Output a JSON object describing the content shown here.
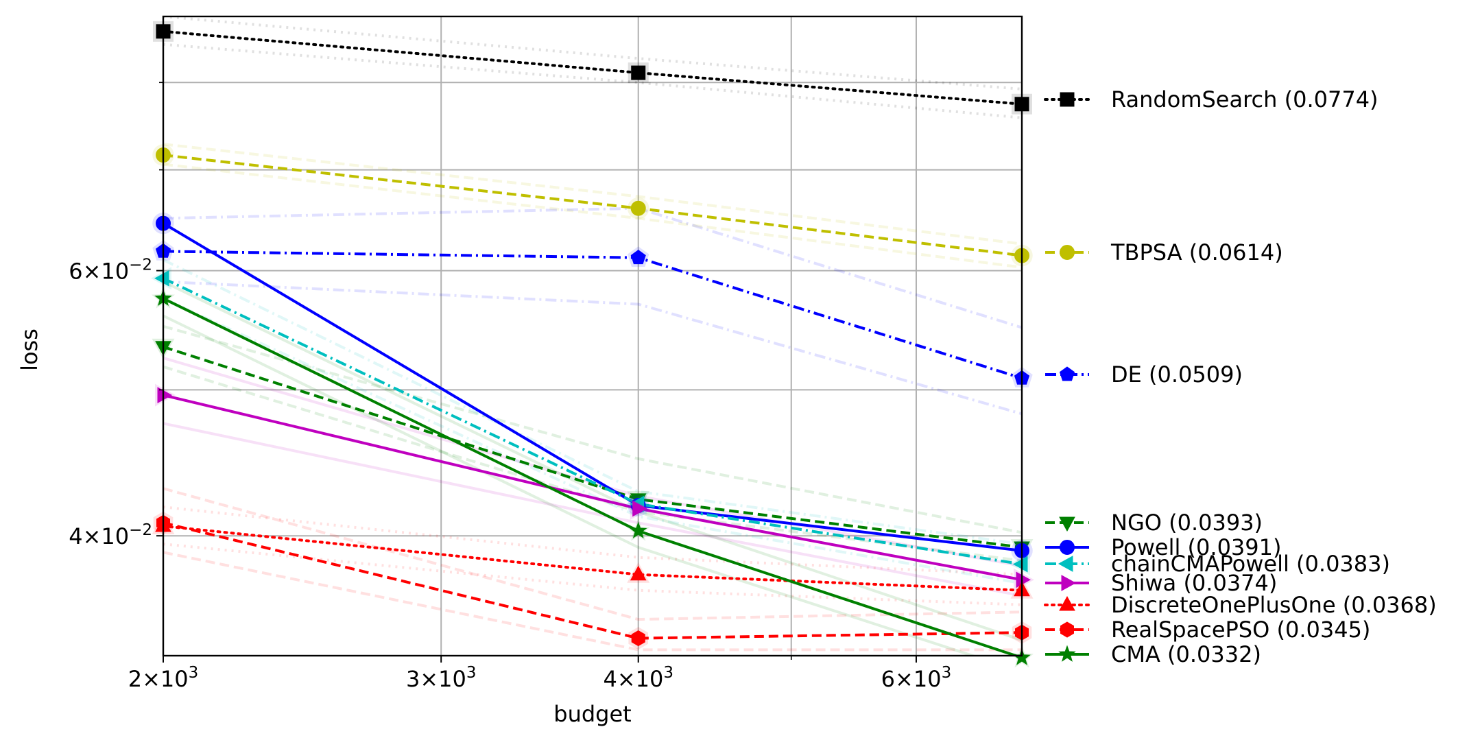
{
  "chart_data": {
    "type": "line",
    "title": "",
    "xlabel": "budget",
    "ylabel": "loss",
    "xscale": "log",
    "yscale": "log",
    "xlim": [
      2000,
      7000
    ],
    "ylim": [
      0.0333,
      0.0885
    ],
    "grid": true,
    "legend_position": "right",
    "x_ticks_major": [
      {
        "value": 2000,
        "mant": "2",
        "exp": "3"
      },
      {
        "value": 3000,
        "mant": "3",
        "exp": "3"
      },
      {
        "value": 4000,
        "mant": "4",
        "exp": "3"
      },
      {
        "value": 6000,
        "mant": "6",
        "exp": "3"
      }
    ],
    "x_ticks_minor": [
      5000
    ],
    "y_ticks_major": [
      {
        "value": 0.04,
        "mant": "4",
        "exp": "−2"
      },
      {
        "value": 0.06,
        "mant": "6",
        "exp": "−2"
      }
    ],
    "y_ticks_minor": [
      0.05,
      0.07,
      0.08
    ],
    "x": [
      2000,
      4000,
      7000
    ],
    "series": [
      {
        "name": "RandomSearch (0.0774)",
        "values": [
          0.0865,
          0.0812,
          0.0774
        ],
        "color": "#000000",
        "dash": "dotted",
        "marker": "square"
      },
      {
        "name": "TBPSA (0.0614)",
        "values": [
          0.0716,
          0.066,
          0.0614
        ],
        "color": "#bfbf00",
        "dash": "dashed",
        "marker": "circle"
      },
      {
        "name": "DE (0.0509)",
        "values": [
          0.0618,
          0.0612,
          0.0509
        ],
        "color": "#0000ff",
        "dash": "dashdot",
        "marker": "pentagon"
      },
      {
        "name": "NGO (0.0393)",
        "values": [
          0.0534,
          0.0423,
          0.0393
        ],
        "color": "#008000",
        "dash": "dashed",
        "marker": "triangle-down"
      },
      {
        "name": "Powell (0.0391)",
        "values": [
          0.0645,
          0.0419,
          0.0391
        ],
        "color": "#0000ff",
        "dash": "solid",
        "marker": "circle"
      },
      {
        "name": "chainCMAPowell (0.0383)",
        "values": [
          0.0593,
          0.042,
          0.0383
        ],
        "color": "#00bfbf",
        "dash": "dashdot",
        "marker": "triangle-left"
      },
      {
        "name": "Shiwa (0.0374)",
        "values": [
          0.0496,
          0.0417,
          0.0374
        ],
        "color": "#bf00bf",
        "dash": "solid",
        "marker": "triangle-right"
      },
      {
        "name": "DiscreteOnePlusOne (0.0368)",
        "values": [
          0.0406,
          0.0377,
          0.0368
        ],
        "color": "#ff0000",
        "dash": "dotted",
        "marker": "triangle-up"
      },
      {
        "name": "RealSpacePSO (0.0345)",
        "values": [
          0.0408,
          0.0342,
          0.0345
        ],
        "color": "#ff0000",
        "dash": "dashed",
        "marker": "hexagon"
      },
      {
        "name": "CMA (0.0332)",
        "values": [
          0.0575,
          0.0403,
          0.0332
        ],
        "color": "#008000",
        "dash": "solid",
        "marker": "star"
      }
    ],
    "faint_series": [
      {
        "values": [
          0.0885,
          0.083,
          0.0792
        ],
        "color": "#000000",
        "dash": "dotted"
      },
      {
        "values": [
          0.0848,
          0.08,
          0.0758
        ],
        "color": "#000000",
        "dash": "dotted"
      },
      {
        "values": [
          0.0728,
          0.0672,
          0.0625
        ],
        "color": "#bfbf00",
        "dash": "dashed"
      },
      {
        "values": [
          0.0706,
          0.065,
          0.0603
        ],
        "color": "#bfbf00",
        "dash": "dashed"
      },
      {
        "values": [
          0.065,
          0.066,
          0.055
        ],
        "color": "#0000ff",
        "dash": "dashdot"
      },
      {
        "values": [
          0.059,
          0.057,
          0.0482
        ],
        "color": "#0000ff",
        "dash": "dashdot"
      },
      {
        "values": [
          0.0551,
          0.045,
          0.0402
        ],
        "color": "#008000",
        "dash": "dashed"
      },
      {
        "values": [
          0.0518,
          0.0415,
          0.0385
        ],
        "color": "#008000",
        "dash": "dashed"
      },
      {
        "values": [
          0.061,
          0.0428,
          0.0395
        ],
        "color": "#00bfbf",
        "dash": "dashdot"
      },
      {
        "values": [
          0.0575,
          0.0412,
          0.0372
        ],
        "color": "#00bfbf",
        "dash": "dashdot"
      },
      {
        "values": [
          0.0525,
          0.0425,
          0.0382
        ],
        "color": "#bf00bf",
        "dash": "solid"
      },
      {
        "values": [
          0.0475,
          0.0408,
          0.0365
        ],
        "color": "#bf00bf",
        "dash": "solid"
      },
      {
        "values": [
          0.0418,
          0.0387,
          0.0377
        ],
        "color": "#ff0000",
        "dash": "dotted"
      },
      {
        "values": [
          0.0395,
          0.0368,
          0.036
        ],
        "color": "#ff0000",
        "dash": "dotted"
      },
      {
        "values": [
          0.043,
          0.0352,
          0.0356
        ],
        "color": "#ff0000",
        "dash": "dashed"
      },
      {
        "values": [
          0.039,
          0.0336,
          0.0336
        ],
        "color": "#ff0000",
        "dash": "dashed"
      },
      {
        "values": [
          0.059,
          0.0415,
          0.0341
        ],
        "color": "#008000",
        "dash": "solid"
      },
      {
        "values": [
          0.056,
          0.0393,
          0.0325
        ],
        "color": "#008000",
        "dash": "solid"
      }
    ]
  }
}
